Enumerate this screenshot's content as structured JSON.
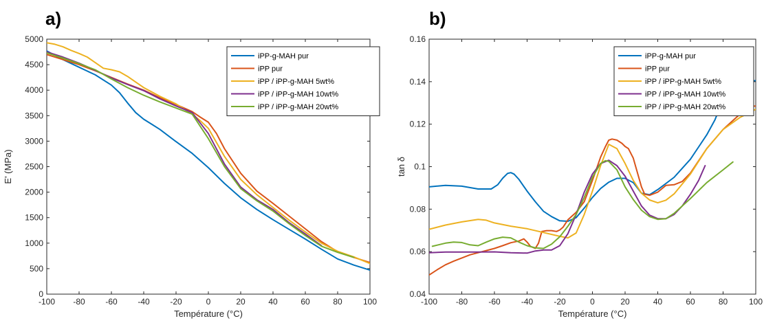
{
  "chart_data": [
    {
      "type": "line",
      "panel_label": "a)",
      "xlabel": "Température (°C)",
      "ylabel": "E' (MPa)",
      "xlim": [
        -100,
        100
      ],
      "ylim": [
        0,
        5000
      ],
      "xticks": [
        "-100",
        "-80",
        "-60",
        "-40",
        "-20",
        "0",
        "20",
        "40",
        "60",
        "80",
        "100"
      ],
      "yticks": [
        "0",
        "500",
        "1000",
        "1500",
        "2000",
        "2500",
        "3000",
        "3500",
        "4000",
        "4500",
        "5000"
      ],
      "grid": false,
      "legend_position": "top-right",
      "series": [
        {
          "name": "iPP-g-MAH pur",
          "color": "#0072BD",
          "x": [
            -100,
            -90,
            -80,
            -70,
            -60,
            -55,
            -50,
            -45,
            -40,
            -35,
            -30,
            -20,
            -10,
            0,
            10,
            20,
            30,
            40,
            50,
            60,
            70,
            80,
            90,
            100
          ],
          "y": [
            4770,
            4600,
            4450,
            4300,
            4100,
            3950,
            3750,
            3560,
            3430,
            3330,
            3230,
            2990,
            2760,
            2480,
            2170,
            1890,
            1660,
            1460,
            1270,
            1080,
            880,
            690,
            570,
            470
          ]
        },
        {
          "name": "iPP pur",
          "color": "#D95319",
          "x": [
            -100,
            -90,
            -80,
            -70,
            -60,
            -50,
            -40,
            -30,
            -20,
            -10,
            -5,
            0,
            5,
            10,
            20,
            30,
            40,
            50,
            60,
            70,
            80,
            90,
            100
          ],
          "y": [
            4700,
            4600,
            4500,
            4380,
            4250,
            4120,
            4000,
            3850,
            3720,
            3580,
            3470,
            3370,
            3150,
            2850,
            2370,
            2020,
            1780,
            1530,
            1280,
            1030,
            830,
            720,
            620
          ]
        },
        {
          "name": "iPP / iPP-g-MAH 5wt%",
          "color": "#EDB120",
          "x": [
            -100,
            -95,
            -90,
            -85,
            -80,
            -75,
            -70,
            -65,
            -60,
            -55,
            -50,
            -40,
            -30,
            -20,
            -10,
            -5,
            0,
            10,
            20,
            30,
            40,
            50,
            60,
            70,
            80,
            90,
            100
          ],
          "y": [
            4930,
            4900,
            4850,
            4780,
            4720,
            4650,
            4540,
            4430,
            4400,
            4360,
            4270,
            4050,
            3880,
            3730,
            3530,
            3400,
            3250,
            2700,
            2250,
            1950,
            1700,
            1450,
            1220,
            1000,
            840,
            730,
            600
          ]
        },
        {
          "name": "iPP / iPP-g-MAH 10wt%",
          "color": "#7E2F8E",
          "x": [
            -100,
            -90,
            -80,
            -70,
            -60,
            -50,
            -40,
            -30,
            -20,
            -10,
            0,
            10,
            20,
            30,
            40,
            50,
            60,
            70
          ],
          "y": [
            4750,
            4650,
            4530,
            4390,
            4240,
            4110,
            3990,
            3830,
            3690,
            3560,
            3150,
            2550,
            2100,
            1850,
            1660,
            1400,
            1180,
            950
          ]
        },
        {
          "name": "iPP / iPP-g-MAH 20wt%",
          "color": "#77AC30",
          "x": [
            -100,
            -90,
            -80,
            -70,
            -60,
            -50,
            -40,
            -30,
            -20,
            -10,
            0,
            10,
            20,
            30,
            40,
            50,
            60,
            70,
            80,
            90
          ],
          "y": [
            4730,
            4630,
            4520,
            4400,
            4220,
            4050,
            3900,
            3770,
            3650,
            3530,
            3050,
            2500,
            2070,
            1830,
            1630,
            1380,
            1150,
            940,
            820,
            720
          ]
        }
      ]
    },
    {
      "type": "line",
      "panel_label": "b)",
      "xlabel": "Température (°C)",
      "ylabel": "tan δ",
      "xlim": [
        -100,
        100
      ],
      "ylim": [
        0.04,
        0.16
      ],
      "xticks": [
        "-100",
        "-80",
        "-60",
        "-40",
        "-20",
        "0",
        "20",
        "40",
        "60",
        "80",
        "100"
      ],
      "yticks": [
        "0.04",
        "0.06",
        "0.08",
        "0.1",
        "0.12",
        "0.14",
        "0.16"
      ],
      "grid": false,
      "legend_position": "top-right",
      "series": [
        {
          "name": "iPP-g-MAH pur",
          "color": "#0072BD",
          "x": [
            -100,
            -90,
            -80,
            -70,
            -62,
            -58,
            -55,
            -52,
            -50,
            -48,
            -45,
            -40,
            -35,
            -30,
            -25,
            -20,
            -15,
            -10,
            -5,
            0,
            5,
            10,
            15,
            20,
            25,
            30,
            35,
            40,
            50,
            60,
            70,
            75,
            80,
            90,
            100
          ],
          "y": [
            0.0905,
            0.0912,
            0.0908,
            0.0895,
            0.0895,
            0.0915,
            0.0945,
            0.0968,
            0.0972,
            0.0965,
            0.094,
            0.0885,
            0.0835,
            0.079,
            0.0765,
            0.0745,
            0.0743,
            0.076,
            0.0805,
            0.0855,
            0.0897,
            0.0927,
            0.0945,
            0.0945,
            0.0925,
            0.0875,
            0.0868,
            0.0892,
            0.095,
            0.1035,
            0.115,
            0.122,
            0.1315,
            0.1395,
            0.1405
          ]
        },
        {
          "name": "iPP pur",
          "color": "#D95319",
          "x": [
            -100,
            -95,
            -90,
            -85,
            -80,
            -75,
            -70,
            -65,
            -60,
            -55,
            -50,
            -45,
            -42,
            -40,
            -38,
            -35,
            -33,
            -31,
            -28,
            -25,
            -22,
            -20,
            -18,
            -15,
            -10,
            -5,
            0,
            5,
            8,
            10,
            12,
            15,
            18,
            20,
            22,
            25,
            30,
            32,
            35,
            40,
            45,
            50,
            55,
            60,
            70,
            80,
            90,
            95,
            100
          ],
          "y": [
            0.049,
            0.0515,
            0.0538,
            0.0555,
            0.057,
            0.0585,
            0.0595,
            0.0605,
            0.0615,
            0.0628,
            0.0642,
            0.065,
            0.066,
            0.0645,
            0.0625,
            0.0615,
            0.064,
            0.0695,
            0.0699,
            0.0699,
            0.0695,
            0.0702,
            0.0715,
            0.075,
            0.0785,
            0.0835,
            0.0935,
            0.1045,
            0.1095,
            0.1125,
            0.113,
            0.1125,
            0.111,
            0.1095,
            0.1085,
            0.104,
            0.0905,
            0.087,
            0.0865,
            0.088,
            0.0912,
            0.0915,
            0.093,
            0.097,
            0.1085,
            0.1175,
            0.1245,
            0.1285,
            0.1285
          ]
        },
        {
          "name": "iPP / iPP-g-MAH 5wt%",
          "color": "#EDB120",
          "x": [
            -100,
            -90,
            -80,
            -70,
            -65,
            -60,
            -50,
            -40,
            -30,
            -20,
            -15,
            -10,
            -5,
            0,
            5,
            10,
            15,
            20,
            25,
            30,
            35,
            40,
            45,
            50,
            60,
            70,
            80,
            90,
            100
          ],
          "y": [
            0.0705,
            0.0725,
            0.074,
            0.0752,
            0.0748,
            0.0735,
            0.072,
            0.0708,
            0.069,
            0.0672,
            0.0665,
            0.0688,
            0.0775,
            0.0885,
            0.1005,
            0.1105,
            0.1085,
            0.1015,
            0.0935,
            0.0875,
            0.0843,
            0.083,
            0.0842,
            0.0872,
            0.0965,
            0.1085,
            0.1175,
            0.123,
            0.127
          ]
        },
        {
          "name": "iPP / iPP-g-MAH 10wt%",
          "color": "#7E2F8E",
          "x": [
            -100,
            -90,
            -80,
            -70,
            -60,
            -50,
            -40,
            -35,
            -30,
            -25,
            -20,
            -15,
            -10,
            -5,
            0,
            5,
            10,
            15,
            20,
            25,
            30,
            35,
            40,
            45,
            50,
            55,
            60,
            65,
            69
          ],
          "y": [
            0.0595,
            0.0598,
            0.0598,
            0.0598,
            0.0599,
            0.0595,
            0.0593,
            0.0603,
            0.0608,
            0.0608,
            0.0628,
            0.0685,
            0.0775,
            0.088,
            0.0965,
            0.1015,
            0.103,
            0.1005,
            0.0955,
            0.0885,
            0.0815,
            0.0772,
            0.0755,
            0.0755,
            0.0775,
            0.0815,
            0.087,
            0.0935,
            0.1005
          ]
        },
        {
          "name": "iPP / iPP-g-MAH 20wt%",
          "color": "#77AC30",
          "x": [
            -98,
            -90,
            -85,
            -80,
            -75,
            -70,
            -65,
            -60,
            -55,
            -50,
            -45,
            -40,
            -35,
            -30,
            -25,
            -20,
            -15,
            -10,
            -5,
            0,
            5,
            8,
            10,
            15,
            20,
            25,
            30,
            35,
            40,
            45,
            50,
            60,
            70,
            80,
            86
          ],
          "y": [
            0.0625,
            0.064,
            0.0645,
            0.0643,
            0.0632,
            0.0628,
            0.0645,
            0.066,
            0.0668,
            0.0665,
            0.0645,
            0.0628,
            0.0618,
            0.0615,
            0.0635,
            0.067,
            0.072,
            0.0775,
            0.0855,
            0.095,
            0.1015,
            0.1028,
            0.1025,
            0.0985,
            0.0905,
            0.0845,
            0.0795,
            0.0765,
            0.0752,
            0.0755,
            0.078,
            0.085,
            0.0925,
            0.0985,
            0.1022
          ]
        }
      ]
    }
  ]
}
